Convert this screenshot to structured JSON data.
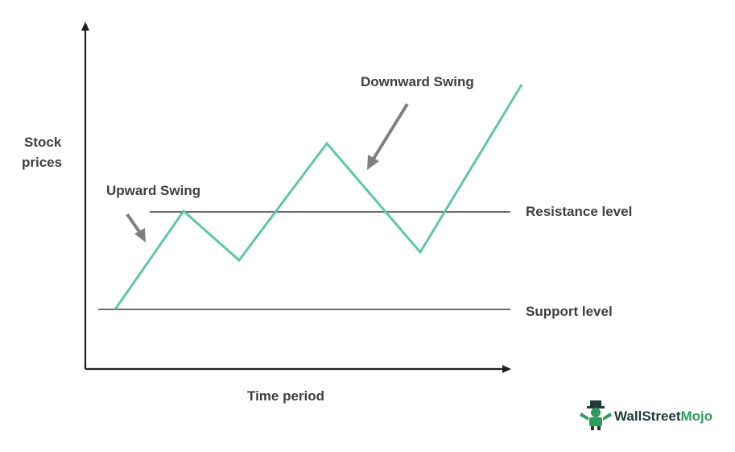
{
  "diagram": {
    "y_axis_label_line1": "Stock",
    "y_axis_label_line2": "prices",
    "x_axis_label": "Time period",
    "upward_swing_label": "Upward Swing",
    "downward_swing_label": "Downward Swing",
    "resistance_label": "Resistance level",
    "support_label": "Support level"
  },
  "logo": {
    "text_part1": "Wall",
    "text_part2": "Street",
    "text_part3": "Mojo"
  },
  "colors": {
    "price_line": "#5ec7a8",
    "level_lines": "#6d6d6d",
    "pointers": "#808080",
    "axis": "#1f1f1f",
    "label_text": "#3f3f3f",
    "logo_green": "#2e9c5c",
    "logo_dark": "#1f3b3b"
  }
}
